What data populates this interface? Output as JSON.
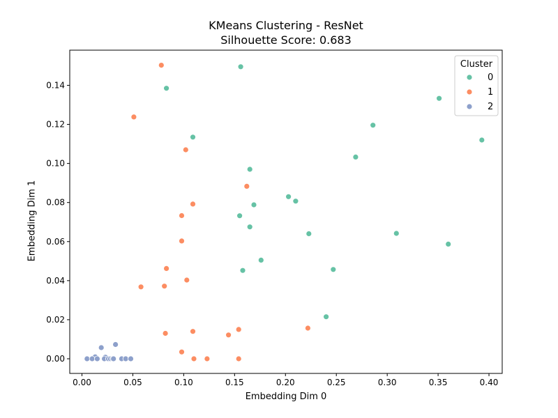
{
  "chart_data": {
    "type": "scatter",
    "title": "KMeans Clustering - ResNet",
    "subtitle": "Silhouette Score: 0.683",
    "xlabel": "Embedding Dim 0",
    "ylabel": "Embedding Dim 1",
    "xlim": [
      -0.012,
      0.413
    ],
    "ylim": [
      -0.0075,
      0.158
    ],
    "xticks": [
      0.0,
      0.05,
      0.1,
      0.15,
      0.2,
      0.25,
      0.3,
      0.35,
      0.4
    ],
    "xtick_labels": [
      "0.00",
      "0.05",
      "0.10",
      "0.15",
      "0.20",
      "0.25",
      "0.30",
      "0.35",
      "0.40"
    ],
    "yticks": [
      0.0,
      0.02,
      0.04,
      0.06,
      0.08,
      0.1,
      0.12,
      0.14
    ],
    "ytick_labels": [
      "0.00",
      "0.02",
      "0.04",
      "0.06",
      "0.08",
      "0.10",
      "0.12",
      "0.14"
    ],
    "grid": false,
    "legend": {
      "title": "Cluster",
      "position": "top-right"
    },
    "series": [
      {
        "name": "0",
        "color": "#66c2a5",
        "points": [
          [
            0.156,
            0.1495
          ],
          [
            0.083,
            0.1385
          ],
          [
            0.109,
            0.1135
          ],
          [
            0.165,
            0.097
          ],
          [
            0.203,
            0.083
          ],
          [
            0.21,
            0.0807
          ],
          [
            0.169,
            0.0788
          ],
          [
            0.155,
            0.0732
          ],
          [
            0.165,
            0.0675
          ],
          [
            0.176,
            0.0505
          ],
          [
            0.158,
            0.0452
          ],
          [
            0.223,
            0.064
          ],
          [
            0.247,
            0.0457
          ],
          [
            0.24,
            0.0215
          ],
          [
            0.269,
            0.1033
          ],
          [
            0.286,
            0.1196
          ],
          [
            0.309,
            0.0642
          ],
          [
            0.351,
            0.1333
          ],
          [
            0.36,
            0.0587
          ],
          [
            0.393,
            0.112
          ]
        ]
      },
      {
        "name": "1",
        "color": "#fc8d62",
        "points": [
          [
            0.078,
            0.1503
          ],
          [
            0.051,
            0.1238
          ],
          [
            0.102,
            0.107
          ],
          [
            0.162,
            0.0883
          ],
          [
            0.109,
            0.0792
          ],
          [
            0.098,
            0.0733
          ],
          [
            0.098,
            0.0603
          ],
          [
            0.083,
            0.0462
          ],
          [
            0.103,
            0.0403
          ],
          [
            0.058,
            0.0368
          ],
          [
            0.081,
            0.0372
          ],
          [
            0.222,
            0.0157
          ],
          [
            0.154,
            0.015
          ],
          [
            0.109,
            0.014
          ],
          [
            0.144,
            0.0122
          ],
          [
            0.082,
            0.013
          ],
          [
            0.098,
            0.0035
          ],
          [
            0.11,
            0.0
          ],
          [
            0.123,
            0.0
          ],
          [
            0.154,
            0.0
          ]
        ]
      },
      {
        "name": "2",
        "color": "#8da0cb",
        "points": [
          [
            0.033,
            0.0073
          ],
          [
            0.019,
            0.0057
          ],
          [
            0.013,
            0.001
          ],
          [
            0.023,
            0.0008
          ],
          [
            0.005,
            0.0
          ],
          [
            0.01,
            0.0
          ],
          [
            0.015,
            0.0
          ],
          [
            0.022,
            0.0
          ],
          [
            0.026,
            0.0
          ],
          [
            0.028,
            0.0
          ],
          [
            0.03,
            0.0
          ],
          [
            0.031,
            0.0
          ],
          [
            0.039,
            0.0
          ],
          [
            0.043,
            0.0
          ],
          [
            0.048,
            0.0
          ]
        ]
      }
    ]
  }
}
